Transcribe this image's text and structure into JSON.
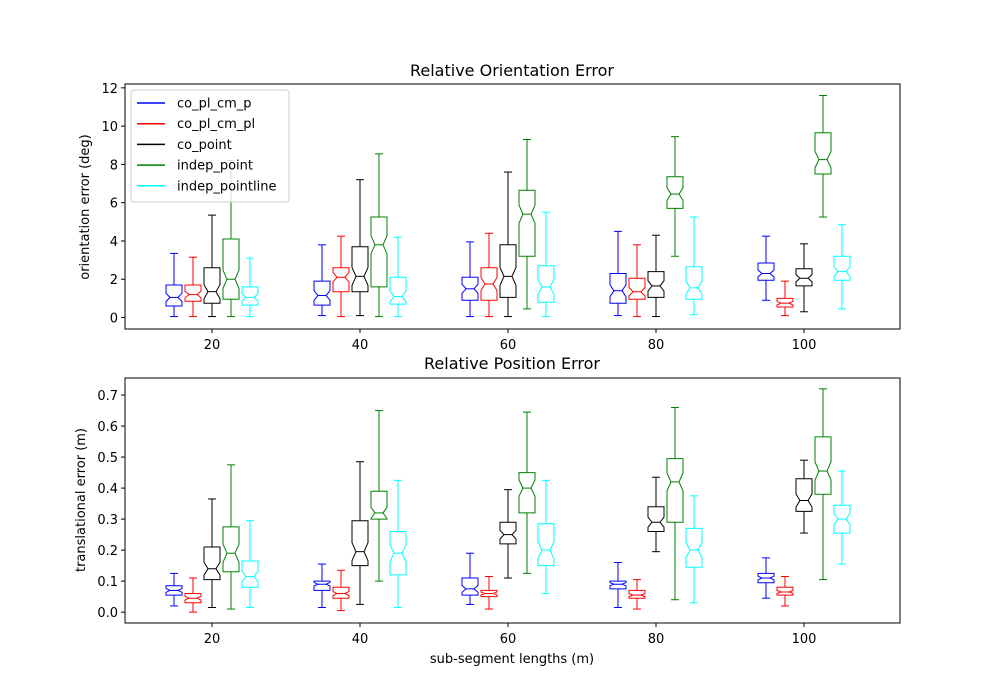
{
  "chart_data": [
    {
      "type": "box",
      "title": "Relative Orientation Error",
      "xlabel": "",
      "ylabel": "orientation error (deg)",
      "categories": [
        "20",
        "40",
        "60",
        "80",
        "100"
      ],
      "ylim": [
        -0.6,
        12.2
      ],
      "yticks": [
        0,
        2,
        4,
        6,
        8,
        10,
        12
      ],
      "legend": {
        "placement": "top-left",
        "entries": [
          "co_pl_cm_p",
          "co_pl_cm_pl",
          "co_point",
          "indep_point",
          "indep_pointline"
        ]
      },
      "series": [
        {
          "name": "co_pl_cm_p",
          "color": "#0000ff",
          "boxes": [
            {
              "min": 0.05,
              "q1": 0.6,
              "median": 1.05,
              "q3": 1.7,
              "max": 3.35
            },
            {
              "min": 0.1,
              "q1": 0.65,
              "median": 1.15,
              "q3": 1.9,
              "max": 3.8
            },
            {
              "min": 0.05,
              "q1": 0.9,
              "median": 1.5,
              "q3": 2.1,
              "max": 3.95
            },
            {
              "min": 0.1,
              "q1": 0.75,
              "median": 1.4,
              "q3": 2.3,
              "max": 4.5
            },
            {
              "min": 0.9,
              "q1": 1.95,
              "median": 2.3,
              "q3": 2.85,
              "max": 4.25
            }
          ]
        },
        {
          "name": "co_pl_cm_pl",
          "color": "#ff0000",
          "boxes": [
            {
              "min": 0.05,
              "q1": 0.85,
              "median": 1.2,
              "q3": 1.7,
              "max": 3.15
            },
            {
              "min": 0.05,
              "q1": 1.35,
              "median": 2.1,
              "q3": 2.6,
              "max": 4.25
            },
            {
              "min": 0.05,
              "q1": 0.9,
              "median": 1.75,
              "q3": 2.6,
              "max": 4.4
            },
            {
              "min": 0.05,
              "q1": 0.95,
              "median": 1.35,
              "q3": 2.05,
              "max": 3.8
            },
            {
              "min": 0.1,
              "q1": 0.55,
              "median": 0.75,
              "q3": 1.0,
              "max": 1.9
            }
          ]
        },
        {
          "name": "co_point",
          "color": "#000000",
          "boxes": [
            {
              "min": 0.05,
              "q1": 0.75,
              "median": 1.35,
              "q3": 2.6,
              "max": 5.35
            },
            {
              "min": 0.1,
              "q1": 1.35,
              "median": 2.15,
              "q3": 3.7,
              "max": 7.2
            },
            {
              "min": 0.05,
              "q1": 1.05,
              "median": 2.15,
              "q3": 3.8,
              "max": 7.6
            },
            {
              "min": 0.05,
              "q1": 1.05,
              "median": 1.65,
              "q3": 2.4,
              "max": 4.3
            },
            {
              "min": 0.3,
              "q1": 1.65,
              "median": 2.05,
              "q3": 2.55,
              "max": 3.85
            }
          ]
        },
        {
          "name": "indep_point",
          "color": "#008000",
          "boxes": [
            {
              "min": 0.05,
              "q1": 0.95,
              "median": 2.0,
              "q3": 4.1,
              "max": 8.2
            },
            {
              "min": 0.05,
              "q1": 1.6,
              "median": 3.8,
              "q3": 5.25,
              "max": 8.55
            },
            {
              "min": 0.45,
              "q1": 3.2,
              "median": 5.4,
              "q3": 6.65,
              "max": 9.3
            },
            {
              "min": 3.2,
              "q1": 5.7,
              "median": 6.45,
              "q3": 7.35,
              "max": 9.45
            },
            {
              "min": 5.25,
              "q1": 7.5,
              "median": 8.25,
              "q3": 9.65,
              "max": 11.6
            }
          ]
        },
        {
          "name": "indep_pointline",
          "color": "#00ffff",
          "boxes": [
            {
              "min": 0.05,
              "q1": 0.65,
              "median": 1.05,
              "q3": 1.6,
              "max": 3.1
            },
            {
              "min": 0.05,
              "q1": 0.7,
              "median": 1.1,
              "q3": 2.1,
              "max": 4.2
            },
            {
              "min": 0.05,
              "q1": 0.8,
              "median": 1.6,
              "q3": 2.7,
              "max": 5.5
            },
            {
              "min": 0.15,
              "q1": 0.95,
              "median": 1.55,
              "q3": 2.65,
              "max": 5.25
            },
            {
              "min": 0.45,
              "q1": 1.95,
              "median": 2.4,
              "q3": 3.2,
              "max": 4.85
            }
          ]
        }
      ]
    },
    {
      "type": "box",
      "title": "Relative Position Error",
      "xlabel": "sub-segment lengths (m)",
      "ylabel": "translational error (m)",
      "categories": [
        "20",
        "40",
        "60",
        "80",
        "100"
      ],
      "ylim": [
        -0.035,
        0.755
      ],
      "yticks": [
        0.0,
        0.1,
        0.2,
        0.3,
        0.4,
        0.5,
        0.6,
        0.7
      ],
      "series": [
        {
          "name": "co_pl_cm_p",
          "color": "#0000ff",
          "boxes": [
            {
              "min": 0.02,
              "q1": 0.055,
              "median": 0.07,
              "q3": 0.085,
              "max": 0.125
            },
            {
              "min": 0.015,
              "q1": 0.07,
              "median": 0.09,
              "q3": 0.1,
              "max": 0.155
            },
            {
              "min": 0.025,
              "q1": 0.055,
              "median": 0.075,
              "q3": 0.11,
              "max": 0.19
            },
            {
              "min": 0.015,
              "q1": 0.075,
              "median": 0.09,
              "q3": 0.1,
              "max": 0.16
            },
            {
              "min": 0.045,
              "q1": 0.095,
              "median": 0.11,
              "q3": 0.125,
              "max": 0.175
            }
          ]
        },
        {
          "name": "co_pl_cm_pl",
          "color": "#ff0000",
          "boxes": [
            {
              "min": 0.0,
              "q1": 0.03,
              "median": 0.045,
              "q3": 0.06,
              "max": 0.11
            },
            {
              "min": 0.005,
              "q1": 0.045,
              "median": 0.06,
              "q3": 0.08,
              "max": 0.135
            },
            {
              "min": 0.01,
              "q1": 0.05,
              "median": 0.06,
              "q3": 0.07,
              "max": 0.115
            },
            {
              "min": 0.01,
              "q1": 0.045,
              "median": 0.055,
              "q3": 0.07,
              "max": 0.105
            },
            {
              "min": 0.02,
              "q1": 0.055,
              "median": 0.065,
              "q3": 0.08,
              "max": 0.115
            }
          ]
        },
        {
          "name": "co_point",
          "color": "#000000",
          "boxes": [
            {
              "min": 0.015,
              "q1": 0.105,
              "median": 0.14,
              "q3": 0.21,
              "max": 0.365
            },
            {
              "min": 0.025,
              "q1": 0.15,
              "median": 0.195,
              "q3": 0.295,
              "max": 0.485
            },
            {
              "min": 0.11,
              "q1": 0.22,
              "median": 0.25,
              "q3": 0.29,
              "max": 0.395
            },
            {
              "min": 0.195,
              "q1": 0.26,
              "median": 0.29,
              "q3": 0.34,
              "max": 0.435
            },
            {
              "min": 0.255,
              "q1": 0.325,
              "median": 0.36,
              "q3": 0.43,
              "max": 0.49
            }
          ]
        },
        {
          "name": "indep_point",
          "color": "#008000",
          "boxes": [
            {
              "min": 0.01,
              "q1": 0.13,
              "median": 0.19,
              "q3": 0.275,
              "max": 0.475
            },
            {
              "min": 0.1,
              "q1": 0.3,
              "median": 0.32,
              "q3": 0.39,
              "max": 0.65
            },
            {
              "min": 0.125,
              "q1": 0.32,
              "median": 0.4,
              "q3": 0.45,
              "max": 0.645
            },
            {
              "min": 0.04,
              "q1": 0.29,
              "median": 0.42,
              "q3": 0.495,
              "max": 0.66
            },
            {
              "min": 0.105,
              "q1": 0.38,
              "median": 0.455,
              "q3": 0.565,
              "max": 0.72
            }
          ]
        },
        {
          "name": "indep_pointline",
          "color": "#00ffff",
          "boxes": [
            {
              "min": 0.015,
              "q1": 0.08,
              "median": 0.115,
              "q3": 0.165,
              "max": 0.295
            },
            {
              "min": 0.015,
              "q1": 0.12,
              "median": 0.19,
              "q3": 0.26,
              "max": 0.425
            },
            {
              "min": 0.06,
              "q1": 0.15,
              "median": 0.2,
              "q3": 0.285,
              "max": 0.425
            },
            {
              "min": 0.03,
              "q1": 0.145,
              "median": 0.2,
              "q3": 0.27,
              "max": 0.375
            },
            {
              "min": 0.155,
              "q1": 0.255,
              "median": 0.3,
              "q3": 0.345,
              "max": 0.455
            }
          ]
        }
      ]
    }
  ]
}
